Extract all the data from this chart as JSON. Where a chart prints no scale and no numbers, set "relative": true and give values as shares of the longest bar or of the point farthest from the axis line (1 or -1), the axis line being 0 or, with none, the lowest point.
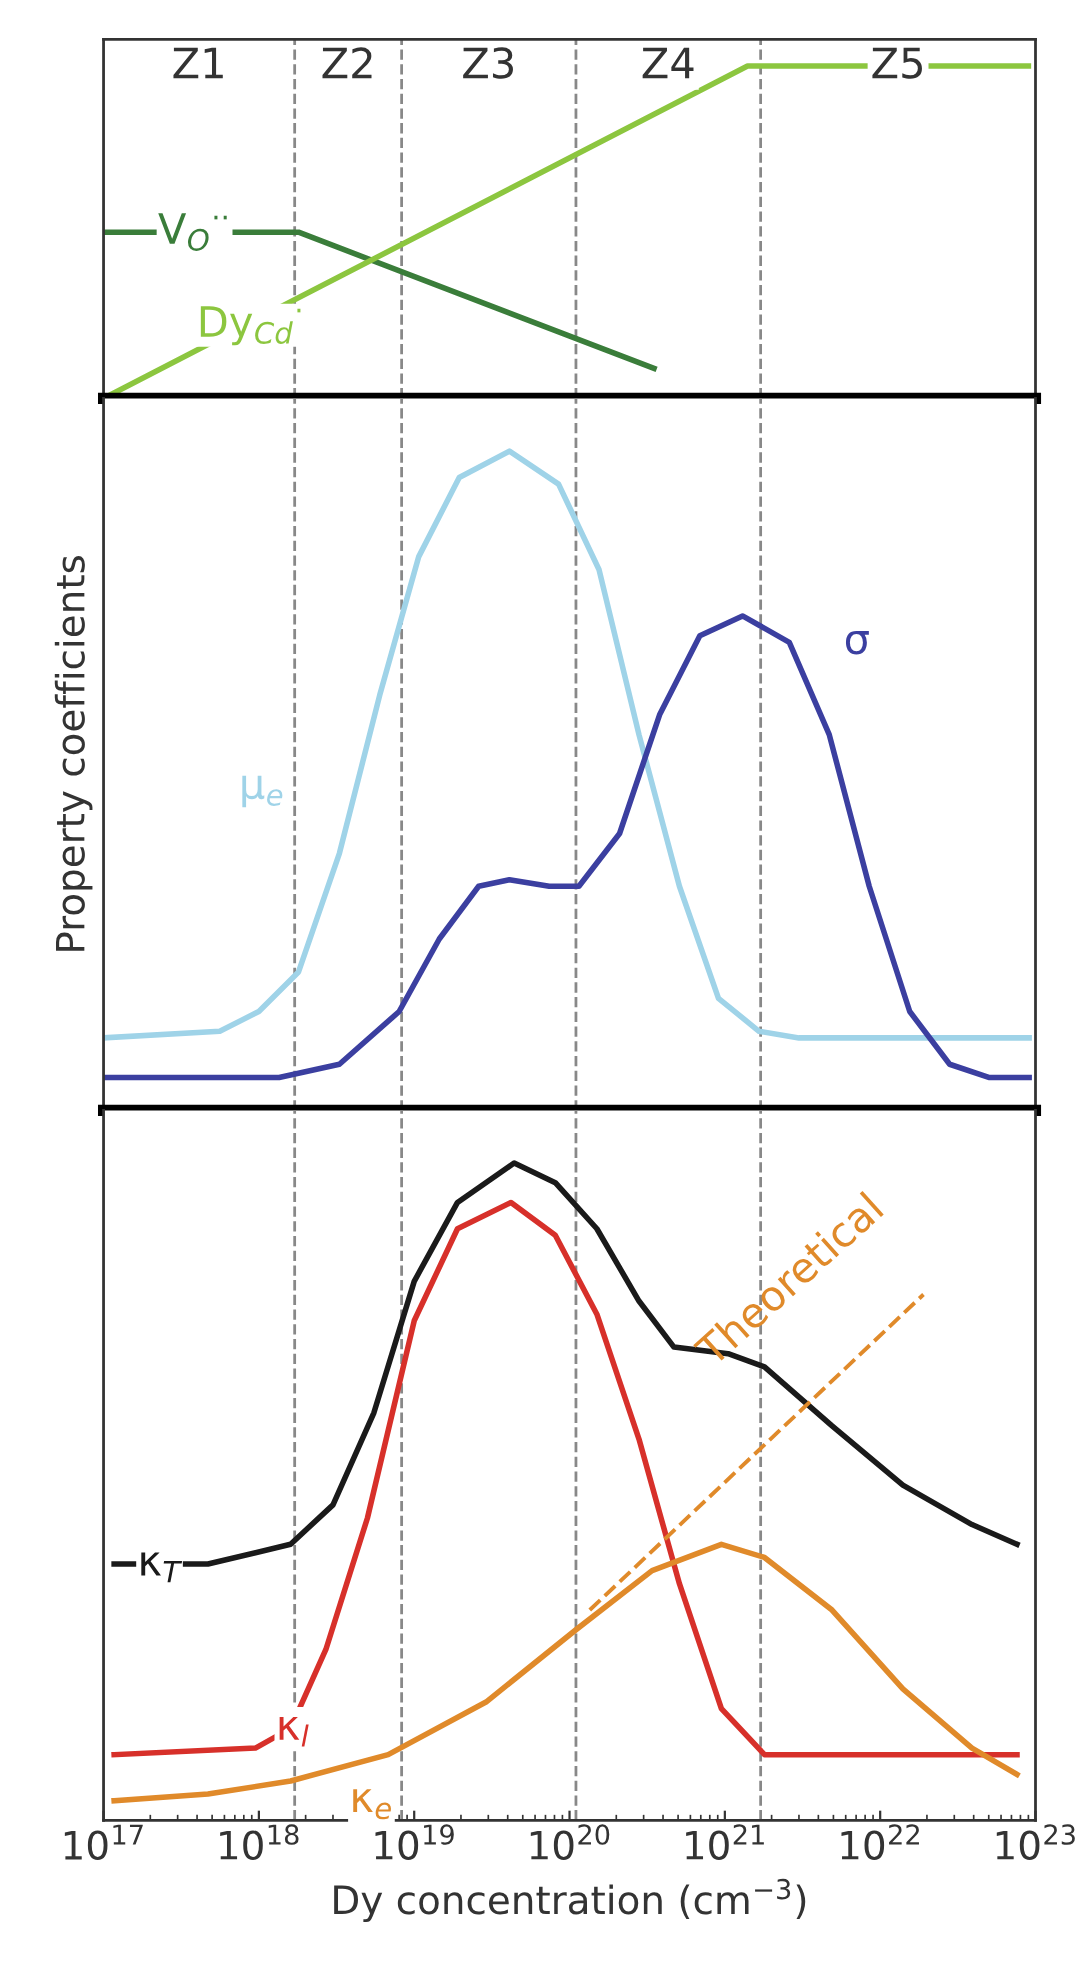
{
  "chart_data": [
    {
      "type": "line",
      "relative": true,
      "log": "x",
      "xlim": [
        1e+17,
        1e+23
      ],
      "tick_labels": false,
      "grid": false,
      "legend": false,
      "marker": "none",
      "line_style": "solid",
      "annotations": [
        "Z1",
        "Z2",
        "Z3",
        "Z4",
        "Z5"
      ],
      "ref_lines": [
        {
          "axis": "x",
          "value": 1.7e+18,
          "color": "#888888",
          "line_style": "dashed"
        },
        {
          "axis": "x",
          "value": 8.3e+18,
          "color": "#888888",
          "line_style": "dashed"
        },
        {
          "axis": "x",
          "value": 1.1e+20,
          "color": "#888888",
          "line_style": "dashed"
        },
        {
          "axis": "x",
          "value": 1.7e+21,
          "color": "#888888",
          "line_style": "dashed"
        }
      ],
      "series": [
        {
          "name": "V$_{O}$$^{··}$",
          "color": "#3a7d3a",
          "x": [
            1e+17,
            1.8e+18,
            3.5e+20
          ],
          "values": [
            0.5,
            0.5,
            0.09
          ]
        },
        {
          "name": "Dy$_{Cd}$$^{·}$",
          "color": "#8cc63f",
          "x": [
            1e+17,
            1.4e+21,
            9e+22
          ],
          "values": [
            0,
            1,
            1
          ]
        }
      ]
    },
    {
      "type": "line",
      "relative": true,
      "log": "x",
      "xlim": [
        1e+17,
        1e+23
      ],
      "tick_labels": false,
      "grid": false,
      "legend": false,
      "marker": "none",
      "line_style": "solid",
      "ylabel": "Property coefficients",
      "ref_lines": [
        {
          "axis": "x",
          "value": 1.7e+18,
          "color": "#888888",
          "line_style": "dashed"
        },
        {
          "axis": "x",
          "value": 8.3e+18,
          "color": "#888888",
          "line_style": "dashed"
        },
        {
          "axis": "x",
          "value": 1.1e+20,
          "color": "#888888",
          "line_style": "dashed"
        },
        {
          "axis": "x",
          "value": 1.7e+21,
          "color": "#888888",
          "line_style": "dashed"
        }
      ],
      "series": [
        {
          "name": "μ$_{e}$",
          "color": "#9fd3e8",
          "x": [
            1e+17,
            5.6e+17,
            1e+18,
            1.8e+18,
            3.3e+18,
            6e+18,
            1.07e+19,
            1.95e+19,
            4.1e+19,
            8.5e+19,
            1.55e+20,
            2.8e+20,
            5.1e+20,
            9.1e+20,
            1.66e+21,
            3e+21,
            9.1e+22
          ],
          "values": [
            0.11,
            0.12,
            0.15,
            0.21,
            0.39,
            0.63,
            0.84,
            0.96,
            1.0,
            0.95,
            0.82,
            0.57,
            0.34,
            0.17,
            0.12,
            0.11,
            0.11
          ]
        },
        {
          "name": "σ",
          "color": "#3b3fa0",
          "x": [
            1e+17,
            1.35e+18,
            3.3e+18,
            8e+18,
            1.45e+19,
            2.6e+19,
            4.1e+19,
            7.4e+19,
            1.15e+20,
            2.1e+20,
            3.8e+20,
            6.9e+20,
            1.3e+21,
            2.6e+21,
            4.7e+21,
            8.5e+21,
            1.55e+22,
            2.8e+22,
            5e+22,
            9.1e+22
          ],
          "values": [
            0.05,
            0.05,
            0.07,
            0.15,
            0.26,
            0.34,
            0.35,
            0.34,
            0.34,
            0.42,
            0.6,
            0.72,
            0.75,
            0.71,
            0.57,
            0.34,
            0.15,
            0.07,
            0.05,
            0.05
          ]
        }
      ]
    },
    {
      "type": "line",
      "relative": true,
      "log": "x",
      "xlim": [
        1e+17,
        1e+23
      ],
      "tick_labels": "x",
      "grid": false,
      "legend": false,
      "marker": "none",
      "line_style": "solid",
      "xlabel": "Dy concentration (cm$^{−3}$)",
      "xticks": [
        {
          "value": 1e+17,
          "label": "10$^{17}$"
        },
        {
          "value": 1e+18,
          "label": "10$^{18}$"
        },
        {
          "value": 1e+19,
          "label": "10$^{19}$"
        },
        {
          "value": 1e+20,
          "label": "10$^{20}$"
        },
        {
          "value": 1e+21,
          "label": "10$^{21}$"
        },
        {
          "value": 1e+22,
          "label": "10$^{22}$"
        },
        {
          "value": 1e+23,
          "label": "10$^{23}$"
        }
      ],
      "ref_lines": [
        {
          "axis": "x",
          "value": 1.7e+18,
          "color": "#888888",
          "line_style": "dashed"
        },
        {
          "axis": "x",
          "value": 8.3e+18,
          "color": "#888888",
          "line_style": "dashed"
        },
        {
          "axis": "x",
          "value": 1.1e+20,
          "color": "#888888",
          "line_style": "dashed"
        },
        {
          "axis": "x",
          "value": 1.7e+21,
          "color": "#888888",
          "line_style": "dashed"
        }
      ],
      "series": [
        {
          "name": "κ$_{T}$",
          "color": "#1a1a1a",
          "x": [
            1.17e+17,
            4.7e+17,
            1.6e+18,
            3e+18,
            5.5e+18,
            1e+19,
            1.9e+19,
            4.4e+19,
            8.1e+19,
            1.5e+20,
            2.8e+20,
            4.7e+20,
            1.05e+21,
            1.8e+21,
            4.9e+21,
            1.4e+22,
            3.9e+22,
            7.6e+22
          ],
          "values": [
            0.39,
            0.39,
            0.42,
            0.48,
            0.62,
            0.82,
            0.94,
            1.0,
            0.97,
            0.9,
            0.79,
            0.72,
            0.71,
            0.69,
            0.6,
            0.51,
            0.45,
            0.42
          ]
        },
        {
          "name": "κ$_{l}$",
          "color": "#d7302a",
          "x": [
            1.17e+17,
            9.5e+17,
            1.6e+18,
            2.7e+18,
            5e+18,
            1e+19,
            1.9e+19,
            4.2e+19,
            8.1e+19,
            1.5e+20,
            2.8e+20,
            5.1e+20,
            9.5e+20,
            1.8e+21,
            4.9e+21,
            7.6e+22
          ],
          "values": [
            0.1,
            0.11,
            0.14,
            0.26,
            0.46,
            0.76,
            0.9,
            0.94,
            0.89,
            0.77,
            0.58,
            0.36,
            0.17,
            0.1,
            0.1,
            0.1
          ]
        },
        {
          "name": "κ$_{e}$",
          "color": "#e08a2a",
          "x": [
            1.17e+17,
            4.7e+17,
            1.6e+18,
            6.8e+18,
            2.9e+19,
            1.1e+20,
            3.4e+20,
            9.5e+20,
            1.8e+21,
            4.9e+21,
            1.4e+22,
            3.9e+22,
            7.6e+22
          ],
          "values": [
            0.03,
            0.04,
            0.06,
            0.1,
            0.18,
            0.29,
            0.38,
            0.42,
            0.4,
            0.32,
            0.2,
            0.11,
            0.07
          ]
        },
        {
          "name": "Theoretical",
          "color": "#e08a2a",
          "line_style": "dashed",
          "x": [
            1.35e+20,
            1.9e+22
          ],
          "values": [
            0.32,
            0.8
          ]
        }
      ]
    }
  ]
}
